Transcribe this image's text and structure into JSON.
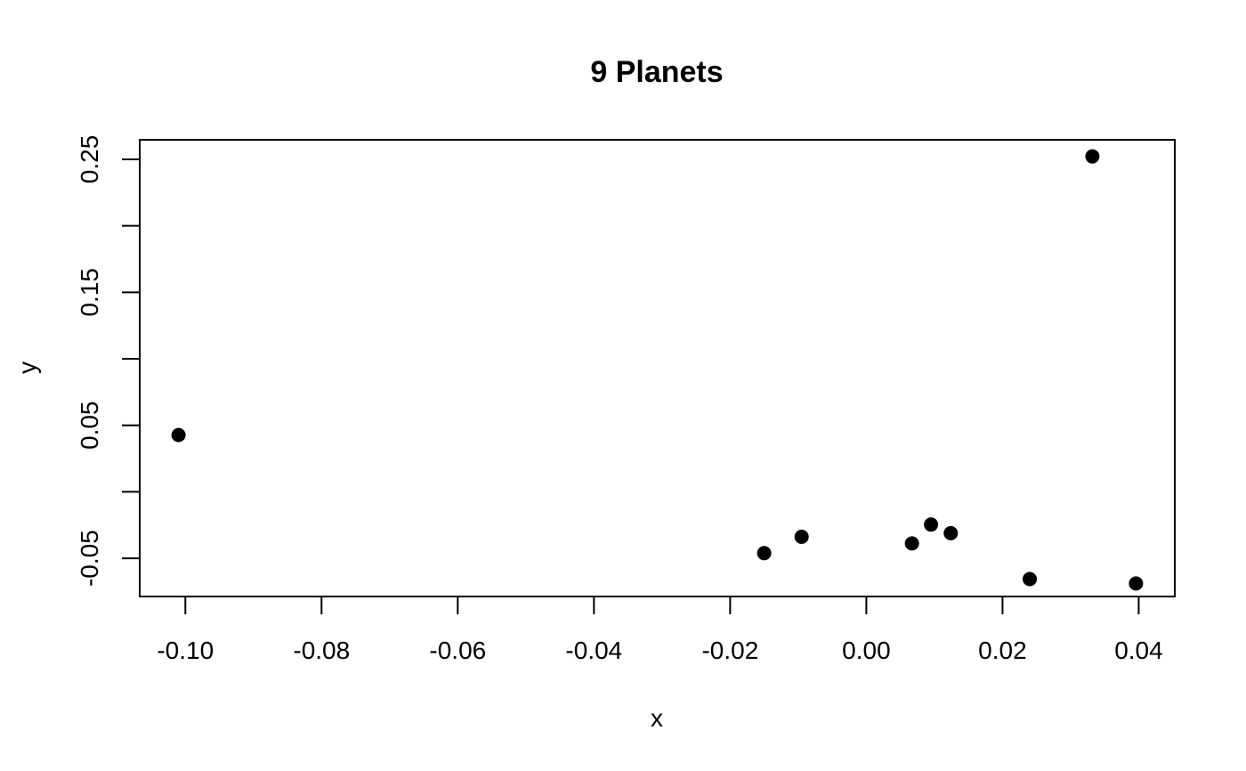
{
  "chart_data": {
    "type": "scatter",
    "title": "9 Planets",
    "xlabel": "x",
    "ylabel": "y",
    "xlim": [
      -0.1067,
      0.0453
    ],
    "ylim": [
      -0.0787,
      0.2647
    ],
    "x_ticks": [
      -0.1,
      -0.08,
      -0.06,
      -0.04,
      -0.02,
      0.0,
      0.02,
      0.04
    ],
    "x_tick_labels": [
      "-0.10",
      "-0.08",
      "-0.06",
      "-0.04",
      "-0.02",
      "0.00",
      "0.02",
      "0.04"
    ],
    "y_ticks": [
      -0.05,
      0.0,
      0.05,
      0.1,
      0.15,
      0.2,
      0.25
    ],
    "y_tick_labels": [
      "-0.05",
      "",
      "0.05",
      "",
      "0.15",
      "",
      "0.25"
    ],
    "grid": false,
    "legend": "none",
    "point_color": "#000000",
    "marker": "filled-circle",
    "points": [
      {
        "x": -0.101,
        "y": 0.0427
      },
      {
        "x": -0.015,
        "y": -0.0461
      },
      {
        "x": -0.0095,
        "y": -0.0338
      },
      {
        "x": 0.0067,
        "y": -0.0388
      },
      {
        "x": 0.0095,
        "y": -0.0246
      },
      {
        "x": 0.0124,
        "y": -0.0311
      },
      {
        "x": 0.024,
        "y": -0.0656
      },
      {
        "x": 0.0332,
        "y": 0.2522
      },
      {
        "x": 0.0396,
        "y": -0.0689
      }
    ]
  }
}
